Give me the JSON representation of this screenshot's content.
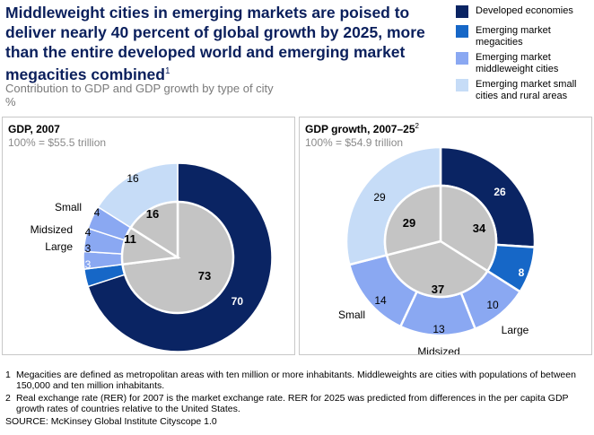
{
  "title_text": "Middleweight cities in emerging markets are poised to deliver nearly 40 percent of global growth by 2025, more than the entire developed world and emerging market megacities combined",
  "title_sup": "1",
  "subtitle_line1": "Contribution to GDP and GDP growth by type of city",
  "subtitle_line2": "%",
  "legend": [
    {
      "label": "Developed economies",
      "color": "#0a2463"
    },
    {
      "label": "Emerging market megacities",
      "color": "#1667c7"
    },
    {
      "label": "Emerging market middleweight cities",
      "color": "#8aa8f2"
    },
    {
      "label": "Emerging market small cities and rural areas",
      "color": "#c6dcf7"
    }
  ],
  "colors": {
    "inner_pie": "#c4c4c4",
    "outer_bg": "#ffffff"
  },
  "chart_data": [
    {
      "type": "pie",
      "title": "GDP, 2007",
      "title_sup": "",
      "subtitle": "100% = $55.5 trillion",
      "outer_ring": [
        {
          "series": "Developed economies",
          "value": 70,
          "color": "#0a2463"
        },
        {
          "series": "Emerging market megacities",
          "value": 3,
          "color": "#1667c7"
        },
        {
          "series": "Emerging market middleweight cities",
          "value": 3,
          "label": "Large",
          "color": "#8aa8f2"
        },
        {
          "series": "Emerging market middleweight cities",
          "value": 4,
          "label": "Midsized",
          "color": "#8aa8f2"
        },
        {
          "series": "Emerging market middleweight cities",
          "value": 4,
          "label": "Small",
          "color": "#8aa8f2"
        },
        {
          "series": "Emerging market small cities and rural areas",
          "value": 16,
          "color": "#c6dcf7"
        }
      ],
      "inner_pie": [
        {
          "value": 73
        },
        {
          "value": 11
        },
        {
          "value": 16
        }
      ]
    },
    {
      "type": "pie",
      "title": "GDP growth, 2007–25",
      "title_sup": "2",
      "subtitle": "100% = $54.9 trillion",
      "outer_ring": [
        {
          "series": "Developed economies",
          "value": 26,
          "color": "#0a2463"
        },
        {
          "series": "Emerging market megacities",
          "value": 8,
          "color": "#1667c7"
        },
        {
          "series": "Emerging market middleweight cities",
          "value": 10,
          "label": "Large",
          "color": "#8aa8f2"
        },
        {
          "series": "Emerging market middleweight cities",
          "value": 13,
          "label": "Midsized",
          "color": "#8aa8f2"
        },
        {
          "series": "Emerging market middleweight cities",
          "value": 14,
          "label": "Small",
          "color": "#8aa8f2"
        },
        {
          "series": "Emerging market small cities and rural areas",
          "value": 29,
          "color": "#c6dcf7"
        }
      ],
      "inner_pie": [
        {
          "value": 34
        },
        {
          "value": 37
        },
        {
          "value": 29
        }
      ]
    }
  ],
  "footnotes": [
    {
      "num": "1",
      "text": "Megacities are defined as metropolitan areas with ten million or more inhabitants. Middleweights are cities with populations of between 150,000 and ten million inhabitants."
    },
    {
      "num": "2",
      "text": "Real exchange rate (RER) for 2007 is the market exchange rate. RER for 2025 was predicted from differences in the per capita GDP growth rates of countries relative to the United States."
    }
  ],
  "source": "SOURCE: McKinsey Global Institute Cityscope 1.0"
}
